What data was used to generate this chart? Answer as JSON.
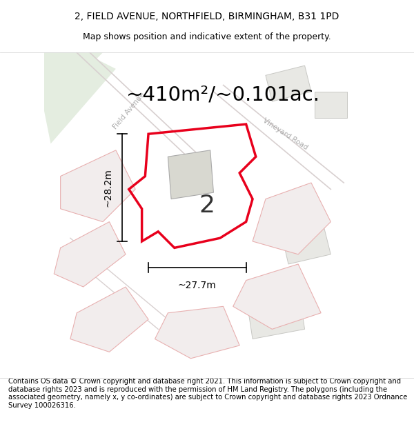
{
  "title": "2, FIELD AVENUE, NORTHFIELD, BIRMINGHAM, B31 1PD",
  "subtitle": "Map shows position and indicative extent of the property.",
  "footer": "Contains OS data © Crown copyright and database right 2021. This information is subject to Crown copyright and database rights 2023 and is reproduced with the permission of HM Land Registry. The polygons (including the associated geometry, namely x, y co-ordinates) are subject to Crown copyright and database rights 2023 Ordnance Survey 100026316.",
  "area_label": "~410m²/~0.101ac.",
  "parcel_number": "2",
  "dim_height": "~28.2m",
  "dim_width": "~27.7m",
  "map_bg": "#f7f7f5",
  "parcel_edge": "#e8001c",
  "parcel_edge_width": 2.5,
  "building_fill": "#d8d8d0",
  "building_edge": "#aaaaaa",
  "other_parcel_edge": "#e8b0b0",
  "other_parcel_fill": "#f2eded",
  "gray_parcel_fill": "#e8e8e4",
  "gray_parcel_edge": "#c8c8c4",
  "green_fill": "#e4ede0",
  "road_stripe_color": "#d8d0d0",
  "road_label_color": "#aaaaaa",
  "title_fontsize": 10,
  "subtitle_fontsize": 9,
  "footer_fontsize": 7.2,
  "area_fontsize": 21,
  "parcel_label_fontsize": 26,
  "dim_fontsize": 10,
  "figsize": [
    6.0,
    6.25
  ],
  "dpi": 100
}
